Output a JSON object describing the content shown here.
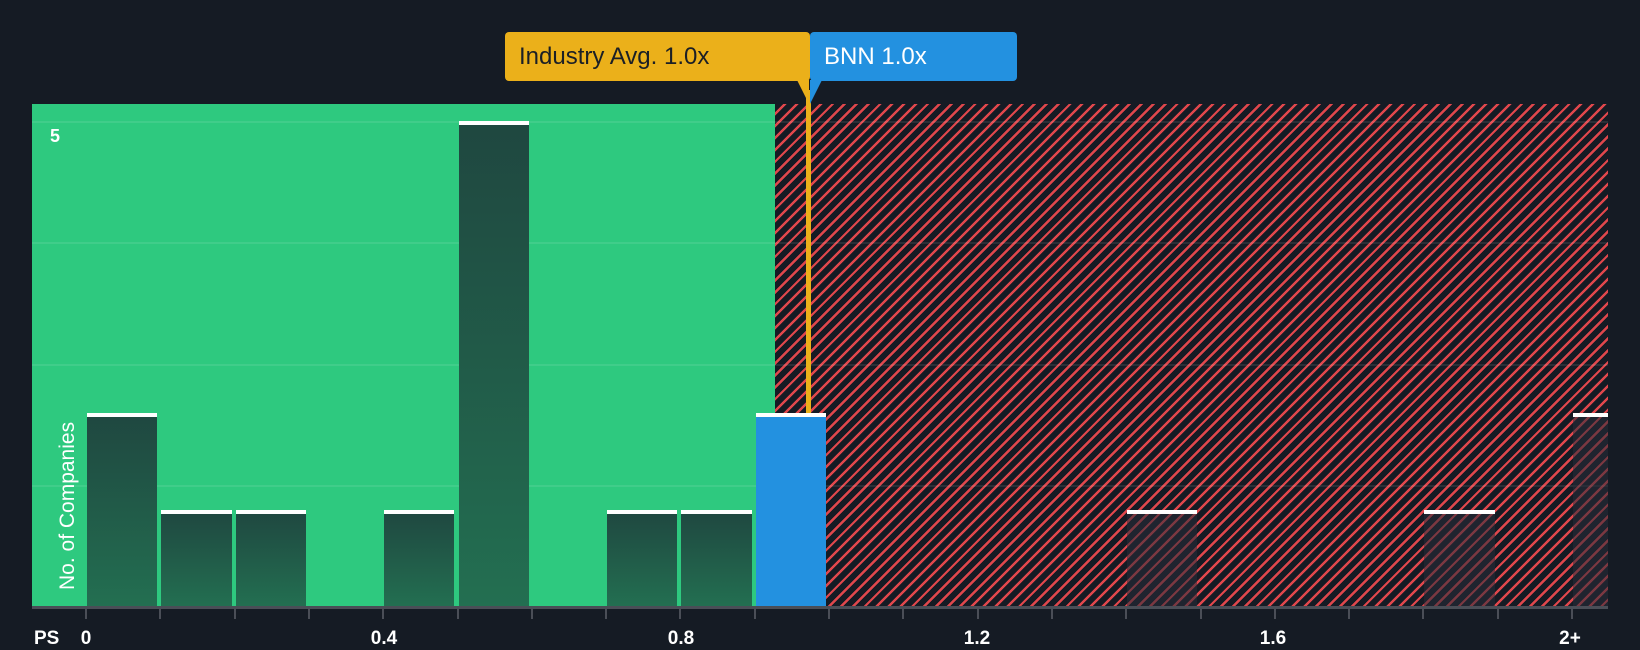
{
  "chart_data": {
    "type": "bar",
    "title": "",
    "xlabel": "PS",
    "ylabel": "No. of Companies",
    "x_tick_labels": [
      "0",
      "0.4",
      "0.8",
      "1.2",
      "1.6",
      "2+"
    ],
    "y_tick_labels": [
      "5"
    ],
    "ylim": [
      0,
      5
    ],
    "bin_width": 0.1,
    "grid": true,
    "categories": [
      "0-0.1",
      "0.1-0.2",
      "0.2-0.3",
      "0.3-0.4",
      "0.4-0.5",
      "0.5-0.6",
      "0.6-0.7",
      "0.7-0.8",
      "0.8-0.9",
      "0.9-1.0",
      "1.0-1.1",
      "1.1-1.2",
      "1.2-1.3",
      "1.3-1.4",
      "1.4-1.5",
      "1.5-1.6",
      "1.6-1.7",
      "1.7-1.8",
      "1.8-1.9",
      "1.9-2.0",
      "2+"
    ],
    "values": [
      2,
      1,
      1,
      0,
      1,
      5,
      0,
      1,
      1,
      2,
      0,
      0,
      0,
      0,
      1,
      0,
      0,
      0,
      1,
      0,
      2
    ],
    "highlight_bin": "0.9-1.0",
    "annotations": [
      {
        "label": "Industry Avg. 1.0x",
        "value": 1.0,
        "color": "#ebb01a"
      },
      {
        "label": "BNN 1.0x",
        "value": 1.0,
        "color": "#2391e0"
      }
    ],
    "zones": [
      {
        "name": "undervalued",
        "from": 0,
        "to": 0.93,
        "color": "#2ec97f"
      },
      {
        "name": "overvalued",
        "from": 0.93,
        "to": 2.1,
        "color": "#e0474c",
        "pattern": "hatched"
      }
    ]
  },
  "labels": {
    "industry_avg": "Industry Avg. 1.0x",
    "company": "BNN 1.0x",
    "x_axis": "PS",
    "y_axis": "No. of Companies",
    "y_tick_top": "5",
    "x_ticks": [
      "0",
      "0.4",
      "0.8",
      "1.2",
      "1.6",
      "2+"
    ]
  },
  "colors": {
    "background": "#151b24",
    "green": "#2ec97f",
    "red": "#e0474c",
    "avg": "#ebb01a",
    "company": "#2391e0"
  }
}
